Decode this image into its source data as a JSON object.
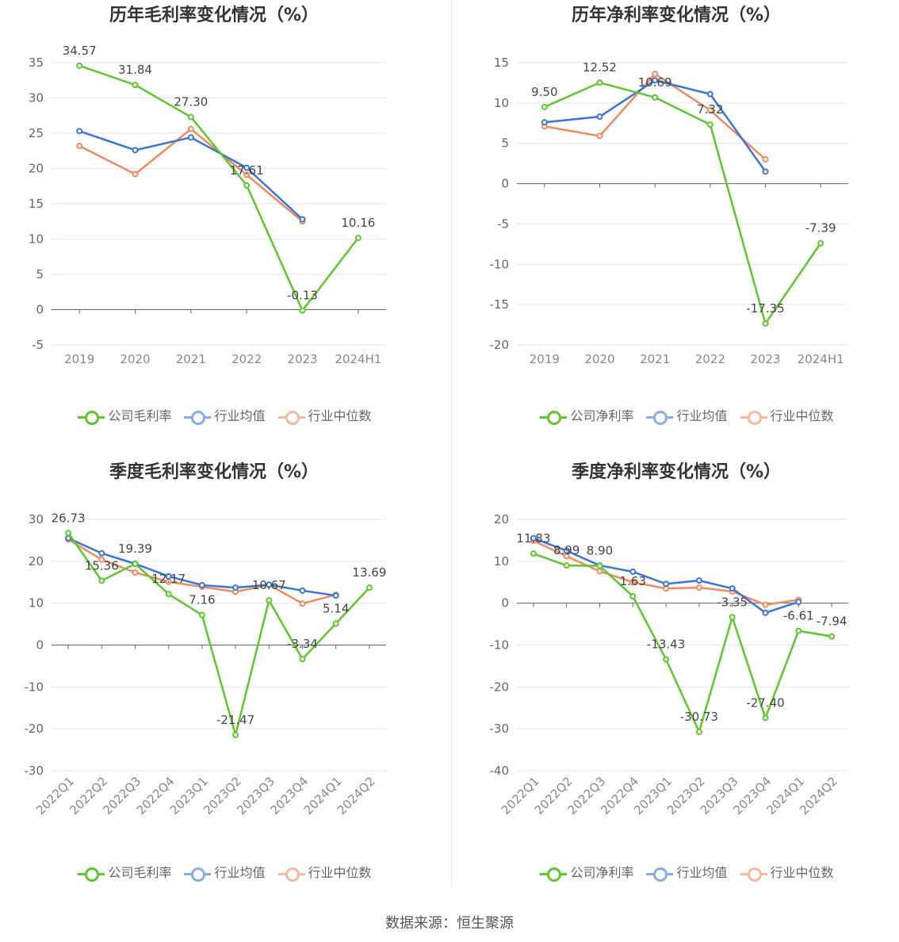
{
  "source": "数据来源：恒生聚源",
  "colors": {
    "company": "#5ec62f",
    "avg": "#3a74d8",
    "median": "#ef8a5f"
  },
  "chart_data": [
    {
      "type": "line",
      "title": "历年毛利率变化情况（%）",
      "categories": [
        "2019",
        "2020",
        "2021",
        "2022",
        "2023",
        "2024H1"
      ],
      "ylim": [
        -5,
        35
      ],
      "yticks": [
        "35",
        "30",
        "25",
        "20",
        "15",
        "10",
        "5",
        "0",
        "-5"
      ],
      "series": [
        {
          "name": "公司毛利率",
          "values": [
            34.57,
            31.84,
            27.3,
            17.61,
            -0.13,
            10.16
          ],
          "labels": [
            "34.57",
            "31.84",
            "27.30",
            "17.61",
            "-0.13",
            "10.16"
          ]
        },
        {
          "name": "行业均值",
          "values": [
            25.3,
            22.6,
            24.4,
            20.1,
            12.8,
            null
          ]
        },
        {
          "name": "行业中位数",
          "values": [
            23.2,
            19.2,
            25.6,
            19.1,
            12.5,
            null
          ]
        }
      ]
    },
    {
      "type": "line",
      "title": "历年净利率变化情况（%）",
      "categories": [
        "2019",
        "2020",
        "2021",
        "2022",
        "2023",
        "2024H1"
      ],
      "ylim": [
        -20,
        15
      ],
      "yticks": [
        "15",
        "10",
        "5",
        "0",
        "-5",
        "-10",
        "-15",
        "-20"
      ],
      "series": [
        {
          "name": "公司净利率",
          "values": [
            9.5,
            12.52,
            10.69,
            7.32,
            -17.35,
            -7.39
          ],
          "labels": [
            "9.50",
            "12.52",
            "10.69",
            "7.32",
            "-17.35",
            "-7.39"
          ]
        },
        {
          "name": "行业均值",
          "values": [
            7.6,
            8.3,
            12.8,
            11.1,
            1.5,
            null
          ]
        },
        {
          "name": "行业中位数",
          "values": [
            7.1,
            5.9,
            13.6,
            9.1,
            3.0,
            null
          ]
        }
      ]
    },
    {
      "type": "line",
      "title": "季度毛利率变化情况（%）",
      "categories": [
        "2022Q1",
        "2022Q2",
        "2022Q3",
        "2022Q4",
        "2023Q1",
        "2023Q2",
        "2023Q3",
        "2023Q4",
        "2024Q1",
        "2024Q2"
      ],
      "ylim": [
        -30,
        30
      ],
      "yticks": [
        "30",
        "20",
        "10",
        "0",
        "-10",
        "-20",
        "-30"
      ],
      "series": [
        {
          "name": "公司毛利率",
          "values": [
            26.73,
            15.36,
            19.39,
            12.17,
            7.16,
            -21.47,
            10.67,
            -3.34,
            5.14,
            13.69
          ],
          "labels": [
            "26.73",
            "15.36",
            "19.39",
            "12.17",
            "7.16",
            "-21.47",
            "10.67",
            "-3.34",
            "5.14",
            "13.69"
          ]
        },
        {
          "name": "行业均值",
          "values": [
            25.5,
            21.9,
            19.4,
            16.4,
            14.3,
            13.7,
            14.4,
            13.0,
            11.8,
            null
          ]
        },
        {
          "name": "行业中位数",
          "values": [
            25.2,
            20.4,
            17.3,
            15.1,
            13.9,
            12.7,
            14.4,
            9.9,
            12.0,
            null
          ]
        }
      ]
    },
    {
      "type": "line",
      "title": "季度净利率变化情况（%）",
      "categories": [
        "2022Q1",
        "2022Q2",
        "2022Q3",
        "2022Q4",
        "2023Q1",
        "2023Q2",
        "2023Q3",
        "2023Q4",
        "2024Q1",
        "2024Q2"
      ],
      "ylim": [
        -40,
        20
      ],
      "yticks": [
        "20",
        "10",
        "0",
        "-10",
        "-20",
        "-30",
        "-40"
      ],
      "series": [
        {
          "name": "公司净利率",
          "values": [
            11.83,
            8.99,
            8.9,
            1.63,
            -13.43,
            -30.73,
            -3.35,
            -27.4,
            -6.61,
            -7.94
          ],
          "labels": [
            "11.83",
            "8.99",
            "8.90",
            "1.63",
            "-13.43",
            "-30.73",
            "-3.35",
            "-27.40",
            "-6.61",
            "-7.94"
          ]
        },
        {
          "name": "行业均值",
          "values": [
            15.5,
            12.5,
            9.0,
            7.5,
            4.6,
            5.4,
            3.5,
            -2.3,
            0.3,
            null
          ]
        },
        {
          "name": "行业中位数",
          "values": [
            14.9,
            11.2,
            7.6,
            5.0,
            3.5,
            3.7,
            2.8,
            -0.4,
            0.8,
            null
          ]
        }
      ]
    }
  ]
}
